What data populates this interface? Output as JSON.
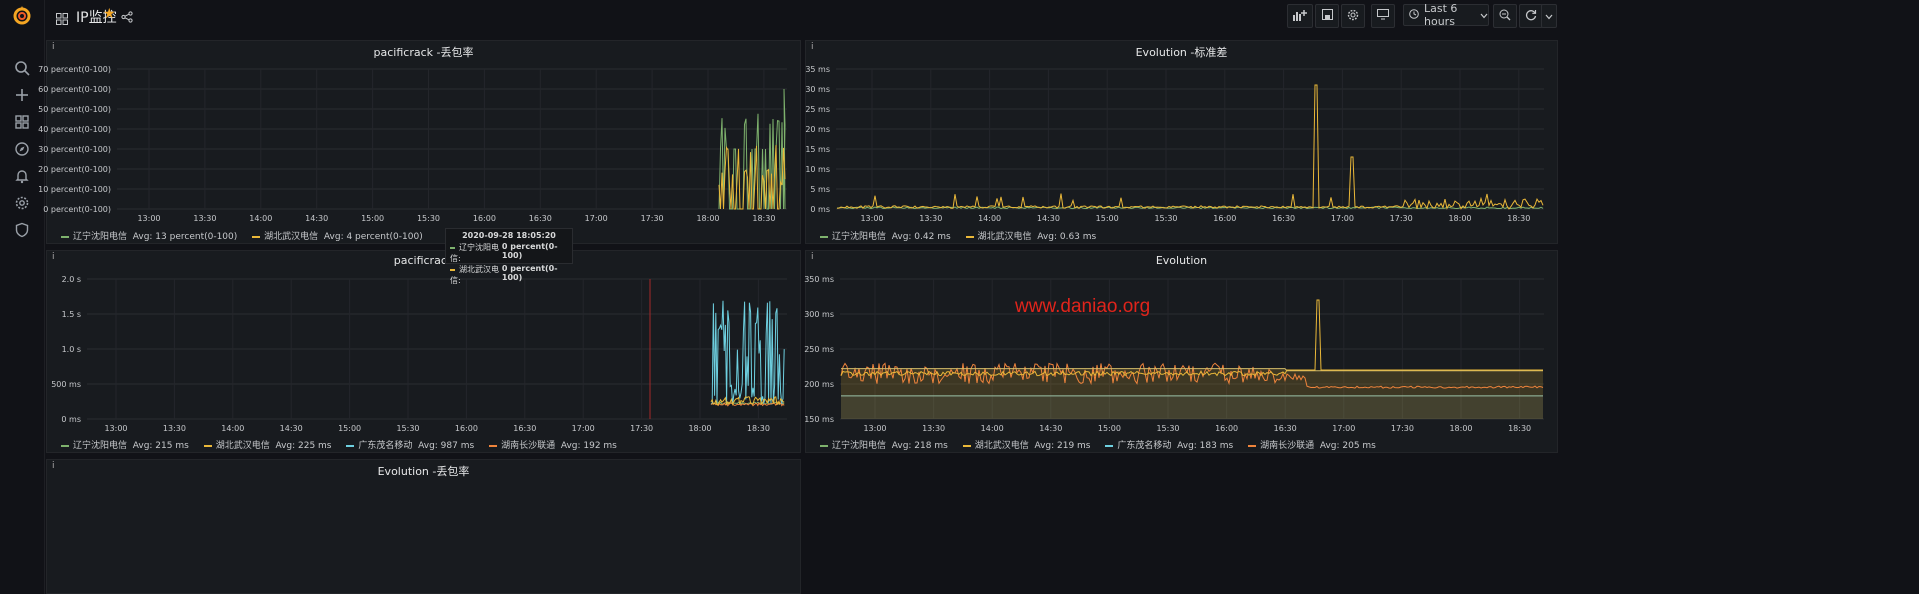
{
  "dashboard": {
    "title": "IP监控",
    "time_range": "Last 6 hours"
  },
  "icons": {
    "sidebar": [
      "search-icon",
      "plus-icon",
      "dashboards-icon",
      "explore-icon",
      "alert-bell-icon",
      "gear-icon",
      "shield-icon"
    ],
    "toolbar": [
      "add-panel-icon",
      "save-icon",
      "settings-icon",
      "tv-mode-icon",
      "clock-icon",
      "chevron-down-icon",
      "zoom-out-icon",
      "refresh-icon",
      "chevron-down-icon"
    ]
  },
  "colors": {
    "green": "#7eb26d",
    "yellow": "#eab839",
    "cyan": "#6ed0e0",
    "orange": "#ef843c",
    "accent": "#f5a623"
  },
  "time_ticks": [
    "13:00",
    "13:30",
    "14:00",
    "14:30",
    "15:00",
    "15:30",
    "16:00",
    "16:30",
    "17:00",
    "17:30",
    "18:00",
    "18:30"
  ],
  "panels": {
    "p1": {
      "title": "pacificrack -丢包率",
      "y_ticks": [
        "70 percent(0-100)",
        "60 percent(0-100)",
        "50 percent(0-100)",
        "40 percent(0-100)",
        "30 percent(0-100)",
        "20 percent(0-100)",
        "10 percent(0-100)",
        "0 percent(0-100)"
      ],
      "legend": [
        {
          "name": "辽宁沈阳电信",
          "avg": "Avg: 13 percent(0-100)",
          "color": "#7eb26d"
        },
        {
          "name": "湖北武汉电信",
          "avg": "Avg: 4 percent(0-100)",
          "color": "#eab839"
        }
      ]
    },
    "p2": {
      "title": "Evolution -标准差",
      "y_ticks": [
        "35 ms",
        "30 ms",
        "25 ms",
        "20 ms",
        "15 ms",
        "10 ms",
        "5 ms",
        "0 ms"
      ],
      "legend": [
        {
          "name": "辽宁沈阳电信",
          "avg": "Avg: 0.42 ms",
          "color": "#7eb26d"
        },
        {
          "name": "湖北武汉电信",
          "avg": "Avg: 0.63 ms",
          "color": "#eab839"
        }
      ]
    },
    "p3": {
      "title": "pacificrack",
      "y_ticks": [
        "2.0 s",
        "1.5 s",
        "1.0 s",
        "500 ms",
        "0 ms"
      ],
      "legend": [
        {
          "name": "辽宁沈阳电信",
          "avg": "Avg: 215 ms",
          "color": "#7eb26d"
        },
        {
          "name": "湖北武汉电信",
          "avg": "Avg: 225 ms",
          "color": "#eab839"
        },
        {
          "name": "广东茂名移动",
          "avg": "Avg: 987 ms",
          "color": "#6ed0e0"
        },
        {
          "name": "湖南长沙联通",
          "avg": "Avg: 192 ms",
          "color": "#ef843c"
        }
      ]
    },
    "p4": {
      "title": "Evolution",
      "y_ticks": [
        "350 ms",
        "300 ms",
        "250 ms",
        "200 ms",
        "150 ms"
      ],
      "legend": [
        {
          "name": "辽宁沈阳电信",
          "avg": "Avg: 218 ms",
          "color": "#7eb26d"
        },
        {
          "name": "湖北武汉电信",
          "avg": "Avg: 219 ms",
          "color": "#eab839"
        },
        {
          "name": "广东茂名移动",
          "avg": "Avg: 183 ms",
          "color": "#6ed0e0"
        },
        {
          "name": "湖南长沙联通",
          "avg": "Avg: 205 ms",
          "color": "#ef843c"
        }
      ]
    },
    "p5": {
      "title": "Evolution -丢包率"
    }
  },
  "tooltip": {
    "time": "2020-09-28 18:05:20",
    "rows": [
      {
        "name": "辽宁沈阳电信:",
        "value": "0 percent(0-100)",
        "color": "#7eb26d"
      },
      {
        "name": "湖北武汉电信:",
        "value": "0 percent(0-100)",
        "color": "#eab839"
      }
    ]
  },
  "watermark": "www.daniao.org"
}
